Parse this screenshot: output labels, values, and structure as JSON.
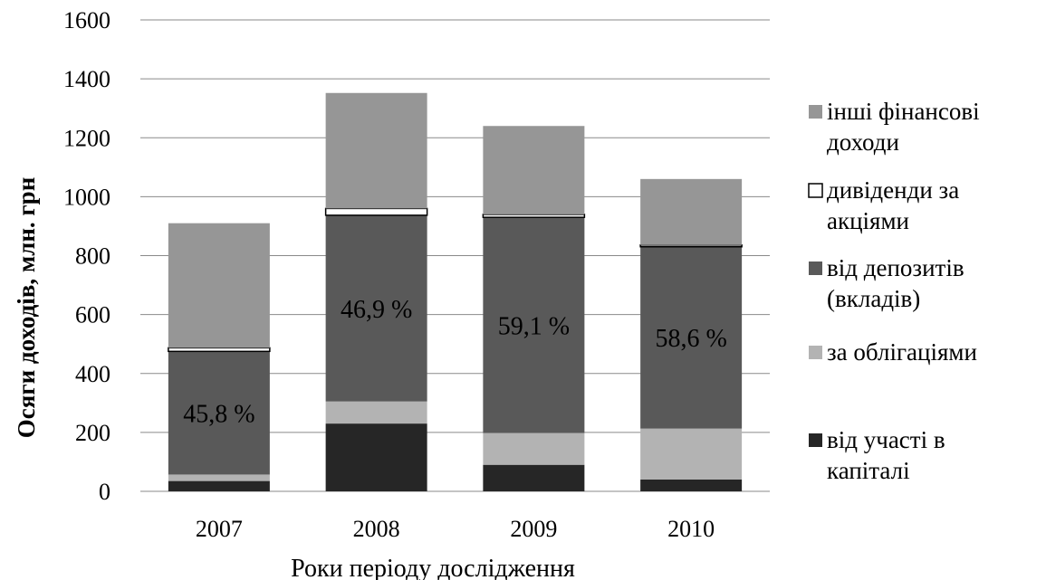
{
  "chart_data": {
    "type": "bar",
    "stacked": true,
    "categories": [
      "2007",
      "2008",
      "2009",
      "2010"
    ],
    "series": [
      {
        "name": "від участі в капіталі",
        "values": [
          35,
          230,
          90,
          40
        ],
        "color": "#262626"
      },
      {
        "name": "за облігаціями",
        "values": [
          22,
          75,
          108,
          173
        ],
        "color": "#b3b3b3"
      },
      {
        "name": "від депозитів (вкладів)",
        "values": [
          418,
          632,
          732,
          617
        ],
        "color": "#595959"
      },
      {
        "name": "дивіденди за акціями",
        "values": [
          12,
          23,
          10,
          6
        ],
        "color": "#ffffff"
      },
      {
        "name": "інші фінансові доходи",
        "values": [
          423,
          392,
          300,
          224
        ],
        "color": "#969696"
      }
    ],
    "data_labels": [
      "45,8 %",
      "46,9 %",
      "59,1 %",
      "58,6 %"
    ],
    "xlabel": "Роки періоду дослідження",
    "ylabel": "Осяги доходів, млн. грн",
    "ylim": [
      0,
      1600
    ],
    "yticks": [
      "0",
      "200",
      "400",
      "600",
      "800",
      "1000",
      "1200",
      "1400",
      "1600"
    ],
    "grid": true,
    "legend_position": "right",
    "legend": [
      {
        "lines": [
          "інші фінансові",
          "доходи"
        ],
        "color": "#969696"
      },
      {
        "lines": [
          "дивіденди за",
          "акціями"
        ],
        "color": "#ffffff"
      },
      {
        "lines": [
          "від депозитів",
          "(вкладів)"
        ],
        "color": "#595959"
      },
      {
        "lines": [
          "за облігаціями"
        ],
        "color": "#b3b3b3"
      },
      {
        "lines": [
          "від участі в",
          "капіталі"
        ],
        "color": "#262626"
      }
    ]
  }
}
